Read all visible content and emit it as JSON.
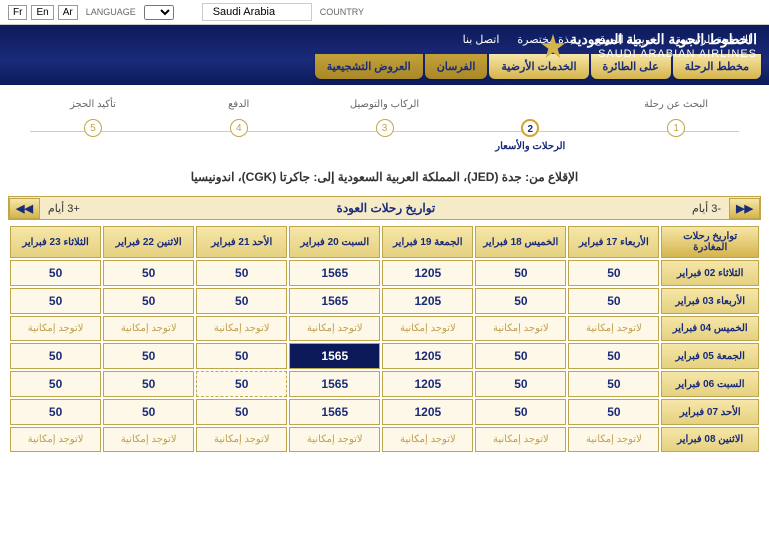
{
  "topbar": {
    "langs": [
      "Fr",
      "En",
      "Ar"
    ],
    "lang_label": "LANGUAGE",
    "country": "Saudi Arabia",
    "country_label": "COUNTRY"
  },
  "header": {
    "nav": [
      "الصفحة الرئيسية",
      "خريطة الموقع",
      "نبذة مختصرة",
      "اتصل بنا"
    ],
    "brand_ar": "الخطوط الجوية العربية السعودية",
    "brand_en": "SAUDI ARABIAN AIRLINES"
  },
  "tabs": [
    "مخطط الرحلة",
    "على الطائرة",
    "الخدمات الأرضية",
    "الفرسان",
    "العروض التشجيعية"
  ],
  "progress": [
    {
      "n": "1",
      "label": "البحث عن رحلة"
    },
    {
      "n": "2",
      "label": "",
      "sub": "الرحلات والأسعار",
      "active": true
    },
    {
      "n": "3",
      "label": "الركاب والتوصيل"
    },
    {
      "n": "4",
      "label": "الدفع"
    },
    {
      "n": "5",
      "label": "تأكيد الحجز"
    }
  ],
  "route": "الإقلاع من: جدة (JED)، المملكة العربية السعودية إلى: جاكرتا (CGK)، اندونيسيا",
  "date_nav": {
    "title": "تواريخ رحلات العودة",
    "minus": "-3 أيام",
    "plus": "+3 أيام",
    "prev": "▶▶",
    "next": "◀◀"
  },
  "grid": {
    "corner": "تواريخ رحلات المغادرة",
    "cols": [
      "الأربعاء 17 فبراير",
      "الخميس 18 فبراير",
      "الجمعة 19 فبراير",
      "السبت 20 فبراير",
      "الأحد 21 فبراير",
      "الاثنين 22 فبراير",
      "الثلاثاء 23 فبراير"
    ],
    "rows": [
      "الثلاثاء 02 فبراير",
      "الأربعاء 03 فبراير",
      "الخميس 04 فبراير",
      "الجمعة 05 فبراير",
      "السبت 06 فبراير",
      "الأحد 07 فبراير",
      "الاثنين 08 فبراير"
    ],
    "na": "لاتوجد إمكانية",
    "cells": [
      [
        "50",
        "50",
        "1205",
        "1565",
        "50",
        "50",
        "50"
      ],
      [
        "50",
        "50",
        "1205",
        "1565",
        "50",
        "50",
        "50"
      ],
      [
        "na",
        "na",
        "na",
        "na",
        "na",
        "na",
        "na"
      ],
      [
        "50",
        "50",
        "1205",
        "1565*",
        "50",
        "50",
        "50"
      ],
      [
        "50",
        "50",
        "1205",
        "1565",
        "50d",
        "50",
        "50"
      ],
      [
        "50",
        "50",
        "1205",
        "1565",
        "50",
        "50",
        "50"
      ],
      [
        "na",
        "na",
        "na",
        "na",
        "na",
        "na",
        "na"
      ]
    ]
  }
}
